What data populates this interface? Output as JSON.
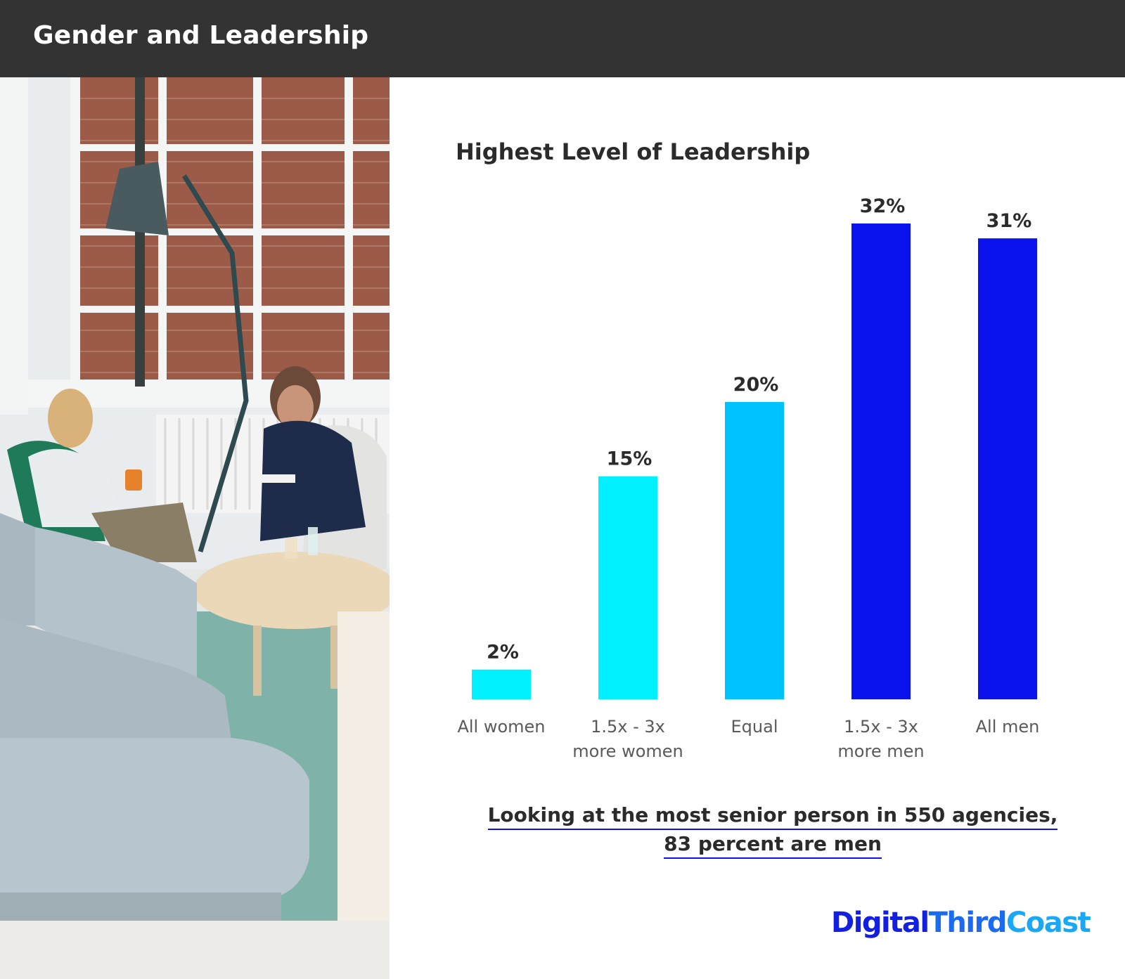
{
  "header": {
    "title": "Gender and Leadership"
  },
  "chart_data": {
    "type": "bar",
    "title": "Highest Level of Leadership",
    "categories": [
      "All women",
      "1.5x - 3x\nmore women",
      "Equal",
      "1.5x - 3x\nmore men",
      "All men"
    ],
    "values": [
      2,
      15,
      20,
      32,
      31
    ],
    "value_labels": [
      "2%",
      "15%",
      "20%",
      "32%",
      "31%"
    ],
    "colors": [
      "#00f0ff",
      "#00f0ff",
      "#00c2ff",
      "#0a12ee",
      "#0a12ee"
    ],
    "ylim": [
      0,
      32
    ],
    "grid": false,
    "xlabel": "",
    "ylabel": ""
  },
  "caption": {
    "line1": "Looking at the most senior person in 550 agencies,",
    "line2": "83 percent are men"
  },
  "brand": {
    "part1": "Digital",
    "part2": "Third",
    "part3": "Coast"
  },
  "photo": {
    "icon": "office-meeting-photo"
  }
}
